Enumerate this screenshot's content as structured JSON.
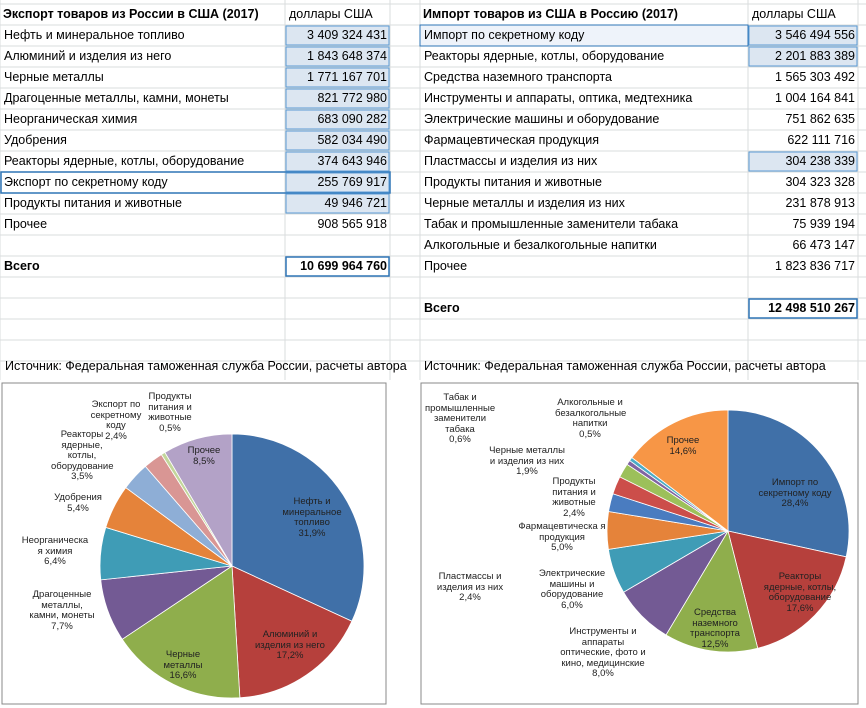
{
  "export_table": {
    "title": "Экспорт товаров из России в США (2017)",
    "unit_header": "доллары США",
    "rows": [
      [
        "Нефть и минеральное топливо",
        "3 409 324 431"
      ],
      [
        "Алюминий и изделия из него",
        "1 843 648 374"
      ],
      [
        "Черные металлы",
        "1 771 167 701"
      ],
      [
        "Драгоценные металлы, камни, монеты",
        "821 772 980"
      ],
      [
        "Неорганическая химия",
        "683 090 282"
      ],
      [
        "Удобрения",
        "582 034 490"
      ],
      [
        "Реакторы ядерные, котлы, оборудование",
        "374 643 946"
      ],
      [
        "Экспорт по секретному коду",
        "255 769 917"
      ],
      [
        "Продукты питания и животные",
        "49 946 721"
      ],
      [
        "Прочее",
        "908 565 918"
      ]
    ],
    "total": [
      "Всего",
      "10 699 964 760"
    ]
  },
  "import_table": {
    "title": "Импорт товаров из США в Россию (2017)",
    "unit_header": "доллары США",
    "rows": [
      [
        "Импорт по секретному коду",
        "3 546 494 556"
      ],
      [
        "Реакторы ядерные, котлы, оборудование",
        "2 201 883 389"
      ],
      [
        "Средства наземного транспорта",
        "1 565 303 492"
      ],
      [
        "Инструменты и аппараты, оптика, медтехника",
        "1 004 164 841"
      ],
      [
        "Электрические машины и оборудование",
        "751 862 635"
      ],
      [
        "Фармацевтическая продукция",
        "622 111 716"
      ],
      [
        "Пластмассы и изделия из них",
        "304 238 339"
      ],
      [
        "Продукты питания и животные",
        "304 323 328"
      ],
      [
        "Черные металлы и изделия из них",
        "231 878 913"
      ],
      [
        "Табак и промышленные заменители табака",
        "75 939 194"
      ],
      [
        "Алкогольные и безалкогольные напитки",
        "66 473 147"
      ],
      [
        "Прочее",
        "1 823 836 717"
      ]
    ],
    "total": [
      "Всего",
      "12 498 510 267"
    ]
  },
  "sources": [
    "Источник: Федеральная таможенная служба России, расчеты автора",
    "Источник: Федеральная таможенная служба России, расчеты автора"
  ],
  "chart_data": [
    {
      "type": "pie",
      "categories": [
        "Нефть и минеральное топливо",
        "Алюминий и изделия из него",
        "Черные металлы",
        "Драгоценные металлы, камни, монеты",
        "Неорганическа я химия",
        "Удобрения",
        "Реакторы ядерные, котлы, оборудование",
        "Экспорт по секретному коду",
        "Продукты питания и животные",
        "Прочее"
      ],
      "values": [
        31.9,
        17.2,
        16.6,
        7.7,
        6.4,
        5.4,
        3.5,
        2.4,
        0.5,
        8.5
      ],
      "value_labels": [
        "31,9%",
        "17,2%",
        "16,6%",
        "7,7%",
        "6,4%",
        "5,4%",
        "3,5%",
        "2,4%",
        "0,5%",
        "8,5%"
      ],
      "colors": [
        "#4070a8",
        "#b6403c",
        "#8fae4c",
        "#735a94",
        "#3f9cb6",
        "#e5833a",
        "#8eaed6",
        "#d99694",
        "#c3d69b",
        "#b3a2c7"
      ]
    },
    {
      "type": "pie",
      "categories": [
        "Импорт по секретному коду",
        "Реакторы ядерные, котлы, оборудование",
        "Средства наземного транспорта",
        "Инструменты и аппараты оптические, фото и кино, медицинские",
        "Электрические машины и оборудование",
        "Фармацевтическа я продукция",
        "Пластмассы и изделия из них",
        "Продукты питания и животные",
        "Черные металлы и изделия из них",
        "Табак и промышленные заменители табака",
        "Алкогольные и безалкогольные напитки",
        "Прочее"
      ],
      "values": [
        28.4,
        17.6,
        12.5,
        8.0,
        6.0,
        5.0,
        2.4,
        2.4,
        1.9,
        0.6,
        0.5,
        14.6
      ],
      "value_labels": [
        "28,4%",
        "17,6%",
        "12,5%",
        "8,0%",
        "6,0%",
        "5,0%",
        "2,4%",
        "2,4%",
        "1,9%",
        "0,6%",
        "0,5%",
        "14,6%"
      ],
      "colors": [
        "#4070a8",
        "#b6403c",
        "#8fae4c",
        "#735a94",
        "#3f9cb6",
        "#e5833a",
        "#4a7cc0",
        "#cc4e4a",
        "#9cc05a",
        "#8064a2",
        "#4bacc6",
        "#f79646"
      ]
    }
  ]
}
